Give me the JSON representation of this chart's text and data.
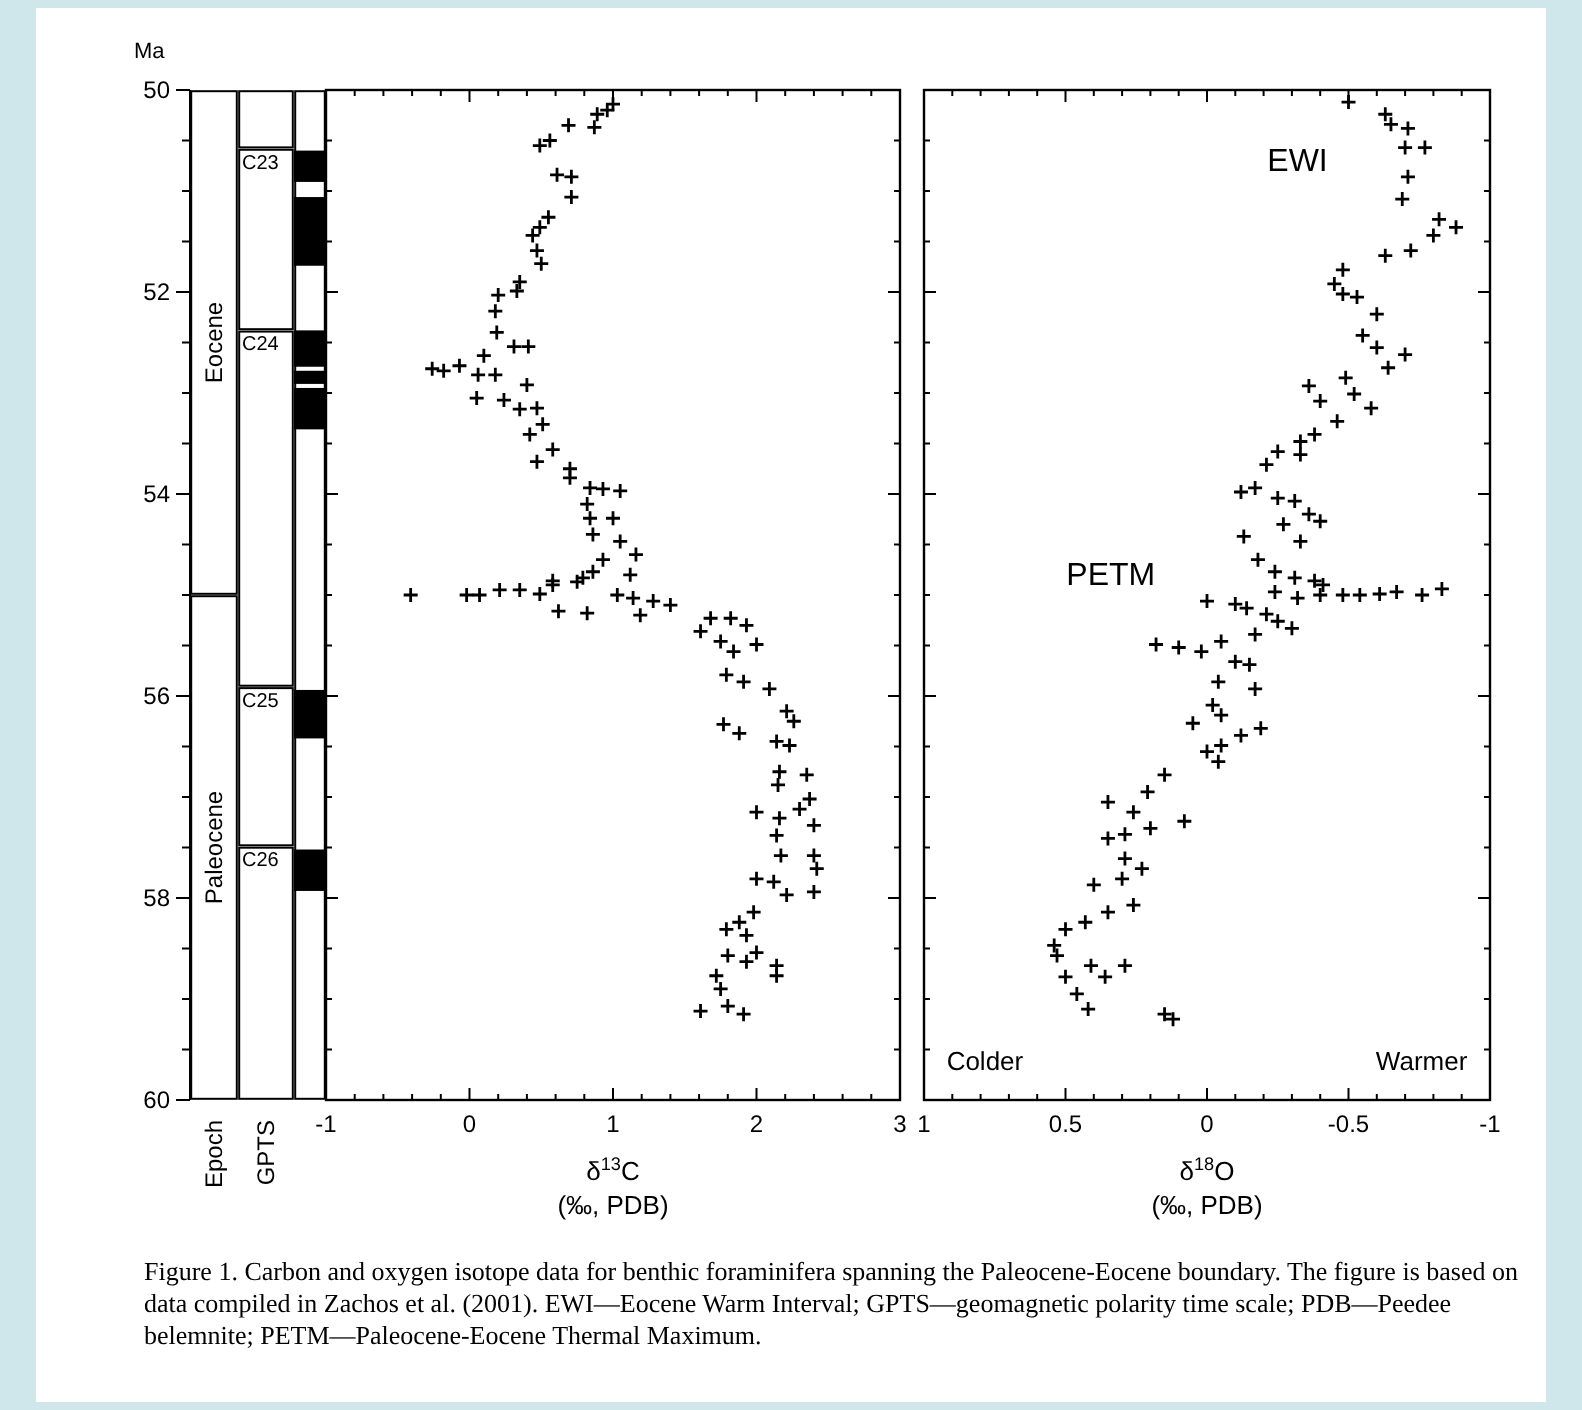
{
  "chart_data": [
    {
      "type": "bar",
      "categories": [
        "Epoch",
        "GPTS",
        null
      ],
      "ylabel": "Ma",
      "ylim": [
        60,
        50
      ],
      "yticks": [
        50,
        {
          "value": 50.5,
          "label": null
        },
        {
          "value": 51,
          "label": null
        },
        {
          "value": 51.5,
          "label": null
        },
        52,
        {
          "value": 52.5,
          "label": null
        },
        {
          "value": 53,
          "label": null
        },
        {
          "value": 53.5,
          "label": null
        },
        54,
        {
          "value": 54.5,
          "label": null
        },
        {
          "value": 55,
          "label": null
        },
        {
          "value": 55.5,
          "label": null
        },
        56,
        {
          "value": 56.5,
          "label": null
        },
        {
          "value": 57,
          "label": null
        },
        {
          "value": 57.5,
          "label": null
        },
        58,
        {
          "value": 58.5,
          "label": null
        },
        {
          "value": 59,
          "label": null
        },
        {
          "value": 59.5,
          "label": null
        },
        60
      ],
      "series": [
        {
          "name": "Eocene",
          "color": "#ffffff",
          "values": [
            5,
            null,
            null
          ],
          "base": [
            50,
            null,
            null
          ]
        },
        {
          "name": "Paleocene",
          "color": "#ffffff",
          "values": [
            5,
            null,
            null
          ],
          "base": [
            55,
            null,
            null
          ]
        },
        {
          "color": "#ffffff",
          "values": [
            null,
            0.58,
            10
          ],
          "base": [
            null,
            50,
            50
          ]
        },
        {
          "name": "C23",
          "color": "#ffffff",
          "values": [
            null,
            1.8,
            null
          ],
          "base": [
            null,
            50.58,
            null
          ]
        },
        {
          "name": "C24",
          "color": "#ffffff",
          "values": [
            null,
            3.53,
            null
          ],
          "base": [
            null,
            52.38,
            null
          ]
        },
        {
          "name": "C25",
          "color": "#ffffff",
          "values": [
            null,
            1.58,
            null
          ],
          "base": [
            null,
            55.91,
            null
          ]
        },
        {
          "name": "C26",
          "color": "#ffffff",
          "values": [
            null,
            2.51,
            null
          ],
          "base": [
            null,
            57.49,
            null
          ]
        },
        {
          "color": "#000000",
          "values": [
            null,
            null,
            0.31
          ],
          "base": [
            null,
            null,
            50.6
          ]
        },
        {
          "color": "#000000",
          "values": [
            null,
            null,
            0.68
          ],
          "base": [
            null,
            null,
            51.06
          ]
        },
        {
          "color": "#000000",
          "values": [
            null,
            null,
            0.36
          ],
          "base": [
            null,
            null,
            52.38
          ]
        },
        {
          "color": "#000000",
          "values": [
            null,
            null,
            0.13
          ],
          "base": [
            null,
            null,
            52.78
          ]
        },
        {
          "color": "#000000",
          "values": [
            null,
            null,
            0.41
          ],
          "base": [
            null,
            null,
            52.95
          ]
        },
        {
          "color": "#000000",
          "values": [
            null,
            null,
            0.48
          ],
          "base": [
            null,
            null,
            55.94
          ]
        },
        {
          "color": "#000000",
          "values": [
            null,
            null,
            0.41
          ],
          "base": [
            null,
            null,
            57.52
          ]
        }
      ],
      "annotations": [
        "Figure 1. Carbon and oxygen isotope data for benthic foraminifera spanning the Paleocene-Eocene boundary. The figure is based on data compiled in Zachos et al. (2001). EWI—Eocene Warm Interval; GPTS—geomagnetic polarity time scale; PDB—Peedee belemnite; PETM—Paleocene-Eocene Thermal Maximum."
      ]
    },
    {
      "type": "scatter",
      "xlabel": "δ$^{13}$C\n(‰, PDB)",
      "xlim": [
        -1,
        3
      ],
      "xticks": [
        -1,
        {
          "value": -0.8,
          "label": null
        },
        {
          "value": -0.6,
          "label": null
        },
        {
          "value": -0.4,
          "label": null
        },
        {
          "value": -0.2,
          "label": null
        },
        0,
        {
          "value": 0.2,
          "label": null
        },
        {
          "value": 0.4,
          "label": null
        },
        {
          "value": 0.6,
          "label": null
        },
        {
          "value": 0.8,
          "label": null
        },
        1,
        {
          "value": 1.2,
          "label": null
        },
        {
          "value": 1.4,
          "label": null
        },
        {
          "value": 1.6,
          "label": null
        },
        {
          "value": 1.8,
          "label": null
        },
        2,
        {
          "value": 2.2,
          "label": null
        },
        {
          "value": 2.4,
          "label": null
        },
        {
          "value": 2.6,
          "label": null
        },
        {
          "value": 2.8,
          "label": null
        },
        3
      ],
      "ylim": [
        60,
        50
      ],
      "yticks": [
        50,
        {
          "value": 50.5,
          "label": null
        },
        {
          "value": 51,
          "label": null
        },
        {
          "value": 51.5,
          "label": null
        },
        52,
        {
          "value": 52.5,
          "label": null
        },
        {
          "value": 53,
          "label": null
        },
        {
          "value": 53.5,
          "label": null
        },
        54,
        {
          "value": 54.5,
          "label": null
        },
        {
          "value": 55,
          "label": null
        },
        {
          "value": 55.5,
          "label": null
        },
        56,
        {
          "value": 56.5,
          "label": null
        },
        {
          "value": 57,
          "label": null
        },
        {
          "value": 57.5,
          "label": null
        },
        58,
        {
          "value": 58.5,
          "label": null
        },
        {
          "value": 59,
          "label": null
        },
        {
          "value": 59.5,
          "label": null
        },
        60
      ],
      "tick_labels": "x",
      "marker": "cross",
      "series": [
        {
          "color": "#000000",
          "x": [
            1.0,
            0.96,
            0.89,
            0.87,
            0.69,
            0.56,
            0.49,
            0.61,
            0.71,
            0.71,
            0.55,
            0.49,
            0.44,
            0.47,
            0.5,
            0.35,
            0.33,
            0.2,
            0.18,
            0.19,
            0.31,
            0.41,
            0.1,
            0.06,
            -0.26,
            -0.18,
            -0.07,
            0.18,
            0.4,
            0.05,
            0.24,
            0.35,
            0.47,
            0.51,
            0.42,
            0.47,
            0.58,
            0.7,
            0.7,
            0.84,
            0.93,
            1.05,
            0.82,
            0.84,
            1.0,
            0.86,
            1.05,
            1.16,
            0.93,
            0.79,
            0.86,
            1.12,
            0.58,
            -0.41,
            -0.02,
            0.07,
            0.21,
            0.35,
            0.49,
            0.58,
            0.75,
            1.03,
            1.14,
            1.28,
            1.4,
            0.62,
            0.82,
            1.19,
            1.61,
            1.68,
            1.82,
            1.93,
            1.75,
            1.84,
            2.0,
            1.79,
            1.91,
            2.09,
            2.21,
            2.26,
            1.77,
            1.88,
            2.14,
            2.23,
            2.16,
            2.15,
            2.35,
            2.37,
            2.3,
            2.4,
            2.0,
            2.16,
            2.14,
            2.17,
            2.4,
            2.42,
            2.0,
            2.12,
            2.4,
            2.21,
            1.98,
            1.79,
            1.88,
            1.93,
            1.8,
            1.93,
            2.0,
            2.14,
            2.14,
            1.72,
            1.75,
            1.8,
            1.91,
            1.61
          ],
          "values": [
            50.14,
            50.2,
            50.24,
            50.37,
            50.35,
            50.5,
            50.55,
            50.84,
            50.86,
            51.06,
            51.26,
            51.36,
            51.44,
            51.59,
            51.72,
            51.9,
            51.99,
            52.03,
            52.19,
            52.4,
            52.54,
            52.54,
            52.63,
            52.82,
            52.76,
            52.78,
            52.73,
            52.82,
            52.92,
            53.05,
            53.07,
            53.16,
            53.15,
            53.31,
            53.41,
            53.68,
            53.56,
            53.75,
            53.84,
            53.94,
            53.95,
            53.97,
            54.1,
            54.24,
            54.24,
            54.4,
            54.47,
            54.6,
            54.65,
            54.83,
            54.77,
            54.8,
            54.86,
            55.0,
            55.0,
            55.0,
            54.95,
            54.95,
            54.99,
            54.9,
            54.87,
            55.0,
            55.03,
            55.06,
            55.1,
            55.16,
            55.18,
            55.2,
            55.36,
            55.23,
            55.23,
            55.3,
            55.46,
            55.56,
            55.49,
            55.79,
            55.86,
            55.93,
            56.15,
            56.25,
            56.28,
            56.37,
            56.45,
            56.49,
            56.75,
            56.88,
            56.78,
            57.02,
            57.12,
            57.28,
            57.15,
            57.21,
            57.38,
            57.58,
            57.58,
            57.71,
            57.81,
            57.84,
            57.94,
            57.97,
            58.14,
            58.31,
            58.24,
            58.37,
            58.57,
            58.63,
            58.54,
            58.67,
            58.77,
            58.77,
            58.9,
            59.07,
            59.15,
            59.12
          ]
        }
      ]
    },
    {
      "type": "scatter",
      "xlabel": "δ$^{18}$O\n(‰, PDB)",
      "xlim": [
        1,
        -1
      ],
      "xticks": [
        1,
        {
          "value": 0.9,
          "label": null
        },
        {
          "value": 0.8,
          "label": null
        },
        {
          "value": 0.7,
          "label": null
        },
        {
          "value": 0.6,
          "label": null
        },
        0.5,
        {
          "value": 0.4,
          "label": null
        },
        {
          "value": 0.3,
          "label": null
        },
        {
          "value": 0.2,
          "label": null
        },
        {
          "value": 0.1,
          "label": null
        },
        0,
        {
          "value": -0.1,
          "label": null
        },
        {
          "value": -0.2,
          "label": null
        },
        {
          "value": -0.3,
          "label": null
        },
        {
          "value": -0.4,
          "label": null
        },
        -0.5,
        {
          "value": -0.6,
          "label": null
        },
        {
          "value": -0.7,
          "label": null
        },
        {
          "value": -0.8,
          "label": null
        },
        {
          "value": -0.9,
          "label": null
        },
        -1
      ],
      "ylim": [
        60,
        50
      ],
      "yticks": [
        50,
        {
          "value": 50.5,
          "label": null
        },
        {
          "value": 51,
          "label": null
        },
        {
          "value": 51.5,
          "label": null
        },
        52,
        {
          "value": 52.5,
          "label": null
        },
        {
          "value": 53,
          "label": null
        },
        {
          "value": 53.5,
          "label": null
        },
        54,
        {
          "value": 54.5,
          "label": null
        },
        {
          "value": 55,
          "label": null
        },
        {
          "value": 55.5,
          "label": null
        },
        56,
        {
          "value": 56.5,
          "label": null
        },
        {
          "value": 57,
          "label": null
        },
        {
          "value": 57.5,
          "label": null
        },
        58,
        {
          "value": 58.5,
          "label": null
        },
        {
          "value": 59,
          "label": null
        },
        {
          "value": 59.5,
          "label": null
        },
        60
      ],
      "tick_labels": "x",
      "marker": "cross",
      "series": [
        {
          "color": "#000000",
          "x": [
            -0.5,
            -0.63,
            -0.65,
            -0.71,
            -0.7,
            -0.77,
            -0.71,
            -0.69,
            -0.82,
            -0.88,
            -0.8,
            -0.72,
            -0.63,
            -0.48,
            -0.45,
            -0.48,
            -0.53,
            -0.6,
            -0.55,
            -0.6,
            -0.64,
            -0.7,
            -0.49,
            -0.36,
            -0.52,
            -0.4,
            -0.58,
            -0.46,
            -0.38,
            -0.33,
            -0.25,
            -0.33,
            -0.21,
            -0.17,
            -0.12,
            -0.25,
            -0.31,
            -0.36,
            -0.4,
            -0.27,
            -0.13,
            -0.33,
            -0.18,
            -0.24,
            -0.31,
            -0.38,
            -0.41,
            0.0,
            -0.1,
            -0.14,
            -0.21,
            -0.25,
            -0.3,
            -0.24,
            -0.32,
            -0.4,
            -0.48,
            -0.54,
            -0.61,
            -0.67,
            -0.76,
            -0.83,
            -0.17,
            0.18,
            0.1,
            0.02,
            -0.05,
            -0.1,
            -0.15,
            -0.17,
            -0.04,
            -0.02,
            0.05,
            -0.05,
            -0.12,
            -0.19,
            0.0,
            -0.05,
            -0.04,
            0.15,
            0.21,
            0.35,
            0.26,
            0.2,
            0.08,
            0.35,
            0.29,
            0.29,
            0.23,
            0.3,
            0.4,
            0.35,
            0.26,
            0.43,
            0.5,
            0.54,
            0.53,
            0.41,
            0.36,
            0.29,
            0.5,
            0.46,
            0.42,
            0.15,
            0.12
          ],
          "values": [
            50.12,
            50.24,
            50.34,
            50.38,
            50.57,
            50.57,
            50.86,
            51.08,
            51.28,
            51.36,
            51.44,
            51.59,
            51.64,
            51.78,
            51.92,
            52.02,
            52.05,
            52.22,
            52.43,
            52.55,
            52.75,
            52.62,
            52.85,
            52.93,
            53.01,
            53.08,
            53.15,
            53.28,
            53.41,
            53.48,
            53.58,
            53.61,
            53.71,
            53.94,
            53.98,
            54.04,
            54.07,
            54.2,
            54.27,
            54.3,
            54.42,
            54.47,
            54.65,
            54.77,
            54.83,
            54.86,
            54.9,
            55.06,
            55.09,
            55.13,
            55.19,
            55.26,
            55.33,
            54.97,
            55.03,
            55.0,
            55.0,
            55.0,
            54.99,
            54.97,
            55.0,
            54.94,
            55.39,
            55.49,
            55.52,
            55.56,
            55.46,
            55.66,
            55.69,
            55.93,
            55.86,
            56.09,
            56.27,
            56.19,
            56.39,
            56.32,
            56.55,
            56.49,
            56.65,
            56.78,
            56.95,
            57.05,
            57.15,
            57.31,
            57.24,
            57.41,
            57.37,
            57.61,
            57.71,
            57.81,
            57.87,
            58.14,
            58.07,
            58.24,
            58.31,
            58.47,
            58.57,
            58.67,
            58.78,
            58.67,
            58.78,
            58.95,
            59.1,
            59.15,
            59.2
          ]
        }
      ],
      "annotations": [
        "EWI",
        "PETM",
        "Colder",
        "Warmer"
      ]
    }
  ]
}
